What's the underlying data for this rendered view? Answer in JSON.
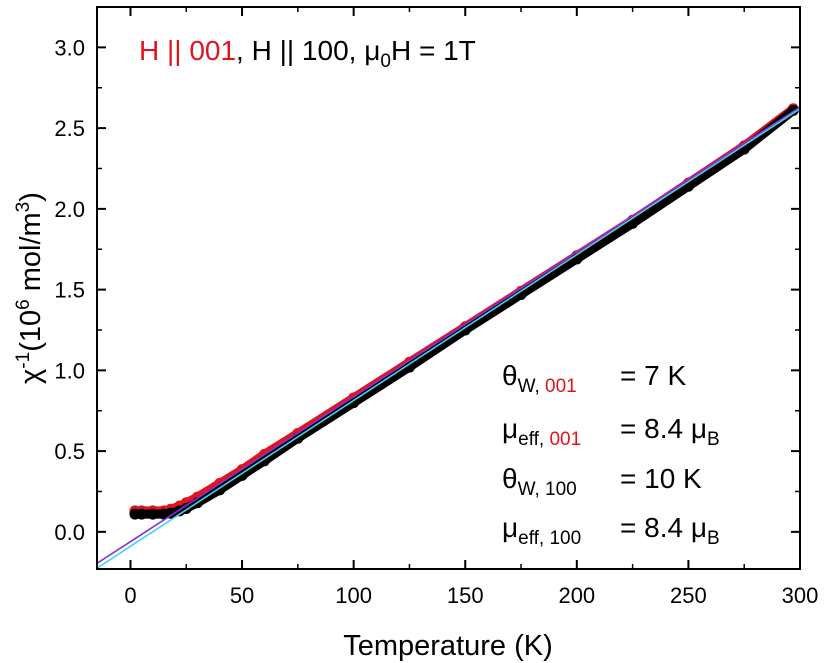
{
  "chart_data": {
    "type": "scatter",
    "title_parts": {
      "part1": "H || 001",
      "sep1": ", ",
      "part2": "H || 100",
      "sep2": ", ",
      "mu": "μ",
      "mu_sub": "0",
      "rest": "H = 1T"
    },
    "xlabel": "Temperature (K)",
    "ylabel": {
      "chi": "χ",
      "exp": "-1",
      "open": "(10",
      "exp6": "6",
      "unit": " mol/m",
      "exp3": "3",
      "close": ")"
    },
    "xlim": [
      -15,
      300
    ],
    "ylim": [
      -0.23,
      3.25
    ],
    "x_ticks": [
      0,
      50,
      100,
      150,
      200,
      250,
      300
    ],
    "x_tick_labels": [
      "0",
      "50",
      "100",
      "150",
      "200",
      "250",
      "300"
    ],
    "y_ticks": [
      0.0,
      0.5,
      1.0,
      1.5,
      2.0,
      2.5,
      3.0
    ],
    "y_tick_labels": [
      "0.0",
      "0.5",
      "1.0",
      "1.5",
      "2.0",
      "2.5",
      "3.0"
    ],
    "grid": false,
    "series": [
      {
        "color": "#e0141e",
        "kind": "points",
        "x": [
          2,
          5,
          10,
          15,
          18,
          22,
          25,
          30,
          40,
          50,
          60,
          75,
          100,
          125,
          150,
          175,
          200,
          225,
          250,
          275,
          297
        ],
        "y": [
          0.13,
          0.13,
          0.13,
          0.13,
          0.14,
          0.16,
          0.18,
          0.215,
          0.3,
          0.385,
          0.48,
          0.61,
          0.83,
          1.05,
          1.27,
          1.49,
          1.71,
          1.93,
          2.16,
          2.39,
          2.62
        ]
      },
      {
        "color": "#000000",
        "kind": "points",
        "x": [
          2,
          5,
          10,
          15,
          18,
          22,
          25,
          30,
          40,
          50,
          60,
          75,
          100,
          125,
          150,
          175,
          200,
          225,
          250,
          275,
          297
        ],
        "y": [
          0.11,
          0.11,
          0.11,
          0.11,
          0.115,
          0.13,
          0.145,
          0.18,
          0.26,
          0.35,
          0.44,
          0.58,
          0.8,
          1.02,
          1.25,
          1.47,
          1.69,
          1.91,
          2.14,
          2.37,
          2.61
        ]
      },
      {
        "color": "#8a2be2",
        "kind": "fit",
        "x": [
          -15,
          300
        ],
        "y": [
          -0.195,
          2.63
        ]
      },
      {
        "color": "#3fd6e6",
        "kind": "fit",
        "x": [
          -15,
          300
        ],
        "y": [
          -0.225,
          2.62
        ]
      }
    ],
    "annotations": [
      {
        "sym": "θ",
        "sub1": "W, ",
        "sub2": "001",
        "value": "= 7 K"
      },
      {
        "sym": "μ",
        "sub1": "eff, ",
        "sub2": "001",
        "value": "= 8.4 μ",
        "val_sub": "B"
      },
      {
        "sym": "θ",
        "sub1": "W, ",
        "sub2": "100",
        "value": "= 10 K"
      },
      {
        "sym": "μ",
        "sub1": "eff, ",
        "sub2": "100",
        "value": "= 8.4 μ",
        "val_sub": "B"
      }
    ],
    "colors": {
      "h001": "#e0141e",
      "h100": "#000000",
      "fit_001": "#8a2be2",
      "fit_100": "#3fd6e6"
    }
  }
}
